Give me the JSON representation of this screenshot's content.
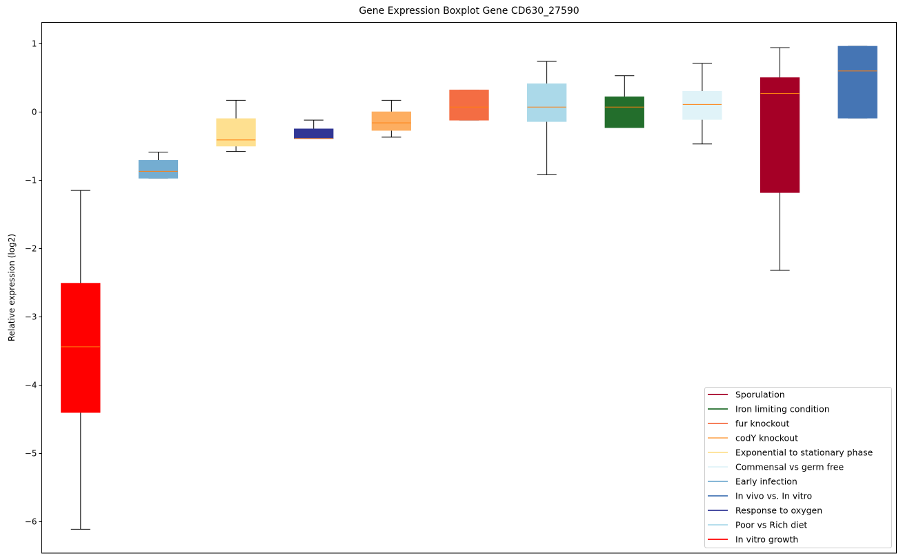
{
  "chart_data": {
    "type": "boxplot",
    "title": "Gene Expression Boxplot Gene CD630_27590",
    "xlabel": "",
    "ylabel": "Relative expression (log2)",
    "ylim": [
      -6.46,
      1.31
    ],
    "yticks": [
      1,
      0,
      -1,
      -2,
      -3,
      -4,
      -5,
      -6
    ],
    "ytick_labels": [
      "1",
      "0",
      "−1",
      "−2",
      "−3",
      "−4",
      "−5",
      "−6"
    ],
    "grid": false,
    "legend_position": "lower-right",
    "median_color": "#ff7f0e",
    "boxes": [
      {
        "name": "In vitro growth",
        "color": "#ff0000",
        "whislo": -6.11,
        "q1": -4.4,
        "med": -3.44,
        "q3": -2.51,
        "whishi": -1.15
      },
      {
        "name": "Early infection",
        "color": "#74add1",
        "whislo": -0.97,
        "q1": -0.97,
        "med": -0.87,
        "q3": -0.71,
        "whishi": -0.59
      },
      {
        "name": "Exponential to stationary phase",
        "color": "#fee090",
        "whislo": -0.58,
        "q1": -0.5,
        "med": -0.41,
        "q3": -0.1,
        "whishi": 0.17
      },
      {
        "name": "Response to oxygen",
        "color": "#313695",
        "whislo": -0.39,
        "q1": -0.39,
        "med": -0.39,
        "q3": -0.25,
        "whishi": -0.12
      },
      {
        "name": "codY knockout",
        "color": "#fdae61",
        "whislo": -0.37,
        "q1": -0.27,
        "med": -0.16,
        "q3": 0.0,
        "whishi": 0.17
      },
      {
        "name": "fur knockout",
        "color": "#f46d43",
        "whislo": -0.12,
        "q1": -0.12,
        "med": 0.07,
        "q3": 0.32,
        "whishi": 0.32
      },
      {
        "name": "Poor vs Rich diet",
        "color": "#abd9e9",
        "whislo": -0.92,
        "q1": -0.14,
        "med": 0.07,
        "q3": 0.41,
        "whishi": 0.74
      },
      {
        "name": "Iron limiting condition",
        "color": "#236e2c",
        "whislo": -0.23,
        "q1": -0.23,
        "med": 0.07,
        "q3": 0.22,
        "whishi": 0.53
      },
      {
        "name": "Commensal vs germ free",
        "color": "#e0f3f8",
        "whislo": -0.47,
        "q1": -0.11,
        "med": 0.11,
        "q3": 0.3,
        "whishi": 0.71
      },
      {
        "name": "Sporulation",
        "color": "#a50026",
        "whislo": -2.32,
        "q1": -1.18,
        "med": 0.27,
        "q3": 0.5,
        "whishi": 0.94
      },
      {
        "name": "In vivo vs. In vitro",
        "color": "#4575b4",
        "whislo": -0.09,
        "q1": -0.09,
        "med": 0.6,
        "q3": 0.96,
        "whishi": 0.96
      }
    ],
    "legend": [
      {
        "label": "Sporulation",
        "color": "#a50026"
      },
      {
        "label": "Iron limiting condition",
        "color": "#236e2c"
      },
      {
        "label": "fur knockout",
        "color": "#f46d43"
      },
      {
        "label": "codY knockout",
        "color": "#fdae61"
      },
      {
        "label": "Exponential to stationary phase",
        "color": "#fee090"
      },
      {
        "label": "Commensal vs germ free",
        "color": "#e0f3f8"
      },
      {
        "label": "Early infection",
        "color": "#74add1"
      },
      {
        "label": "In vivo vs. In vitro",
        "color": "#4575b4"
      },
      {
        "label": "Response to oxygen",
        "color": "#313695"
      },
      {
        "label": "Poor vs Rich diet",
        "color": "#abd9e9"
      },
      {
        "label": "In vitro growth",
        "color": "#ff0000"
      }
    ]
  }
}
